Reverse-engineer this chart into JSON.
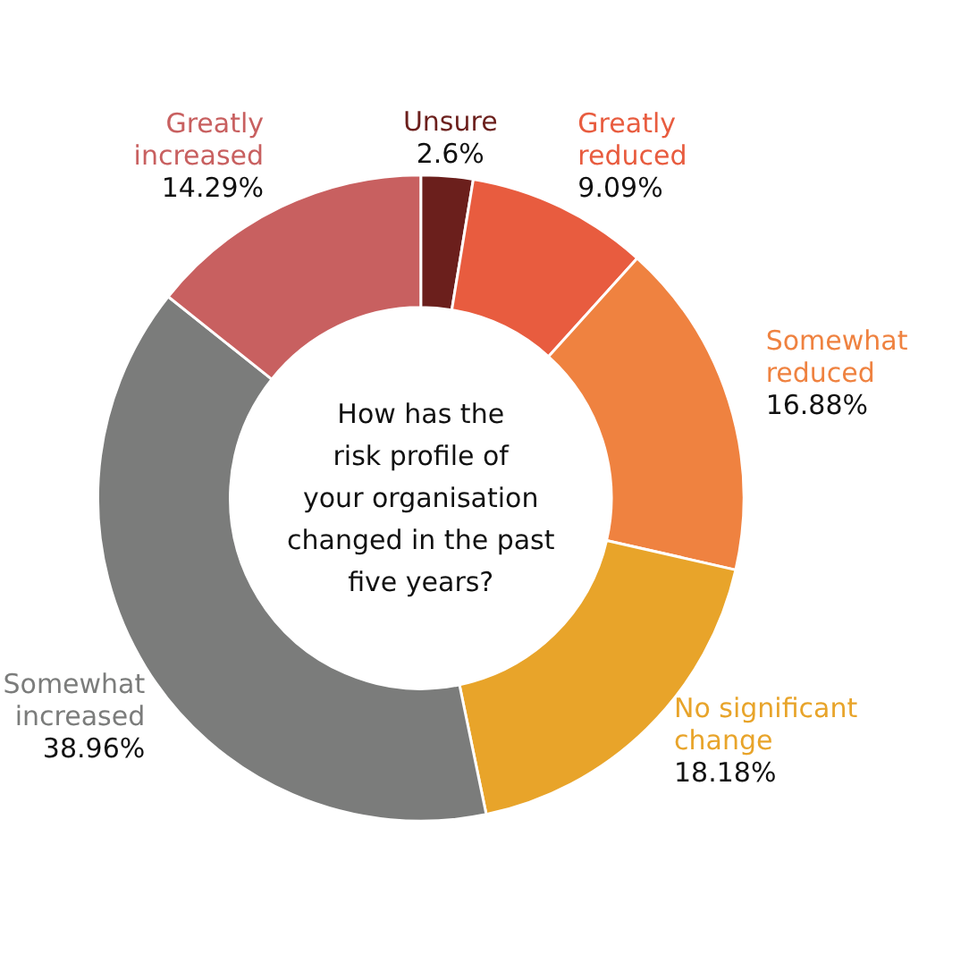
{
  "chart_data": {
    "type": "donut",
    "title": "How has the\nrisk profile of\nyour organisation\nchanged in the past\nfive years?",
    "categories": [
      "Unsure",
      "Greatly\nreduced",
      "Somewhat\nreduced",
      "No significant\nchange",
      "Somewhat\nincreased",
      "Greatly\nincreased"
    ],
    "values": [
      2.6,
      9.09,
      16.88,
      18.18,
      38.96,
      14.29
    ],
    "colors": [
      "#6b1f1c",
      "#e85c3f",
      "#ef8240",
      "#e8a42a",
      "#7b7c7b",
      "#c86060"
    ],
    "value_labels": [
      "2.6%",
      "9.09%",
      "16.88%",
      "18.18%",
      "38.96%",
      "14.29%"
    ]
  }
}
